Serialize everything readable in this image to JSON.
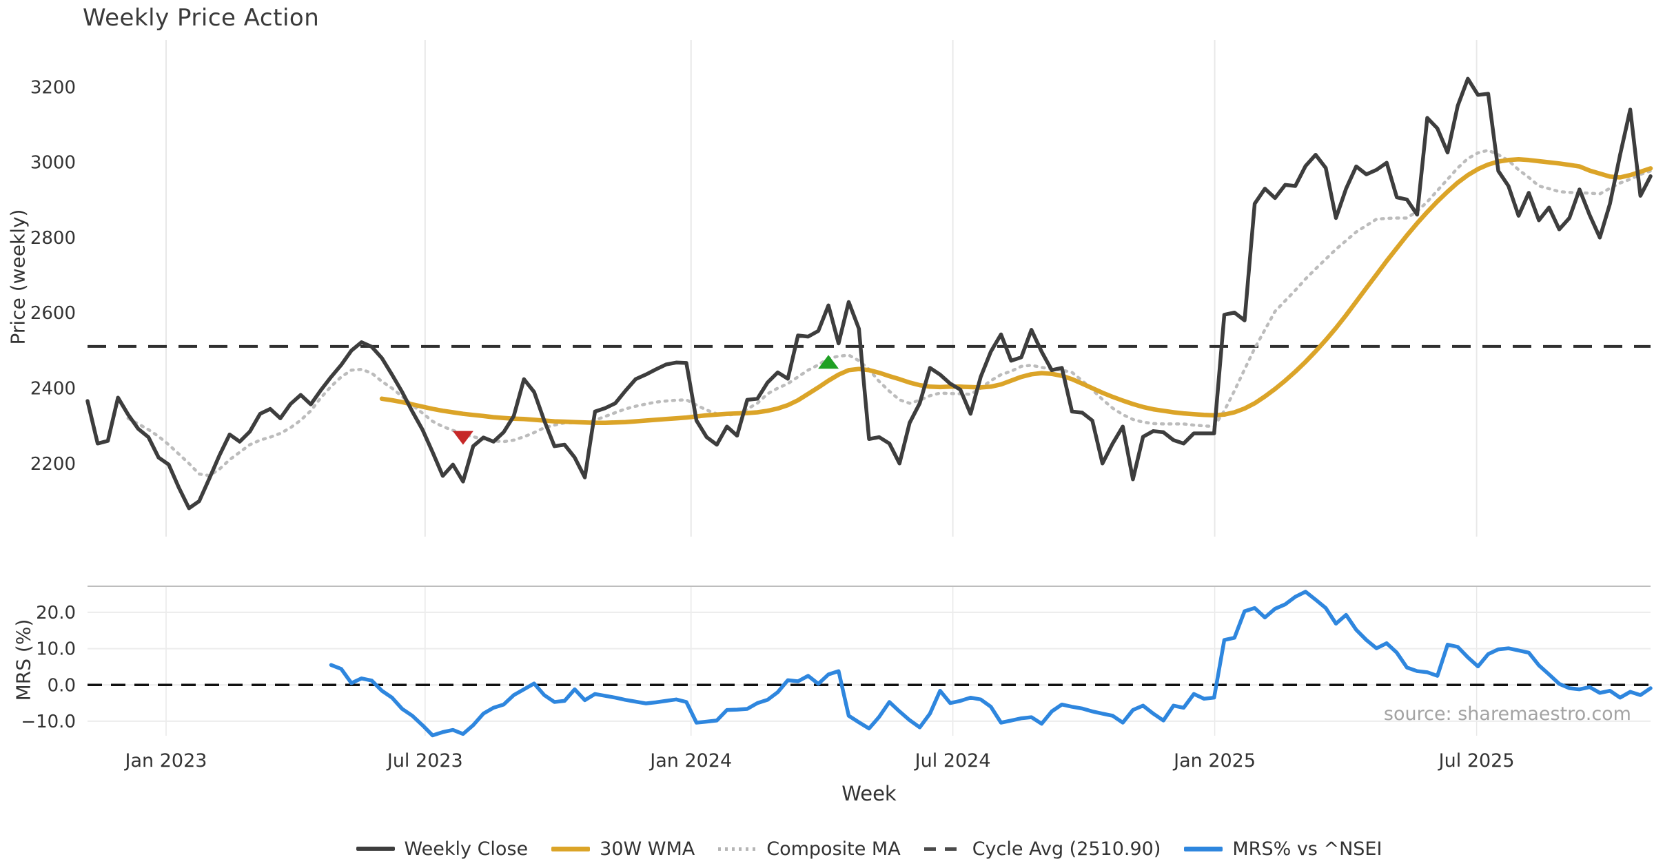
{
  "title": "Weekly Price Action",
  "source_note": "source: sharemaestro.com",
  "price_axis": {
    "label": "Price (weekly)",
    "ticks": [
      3200,
      3000,
      2800,
      2600,
      2400,
      2200
    ],
    "ylim": [
      2013,
      3325
    ]
  },
  "mrs_axis": {
    "label": "MRS (%)",
    "ticks": [
      {
        "v": 20,
        "label": "20.0"
      },
      {
        "v": 10,
        "label": "10.0"
      },
      {
        "v": 0,
        "label": "0.0"
      },
      {
        "v": -10,
        "label": "−10.0"
      }
    ],
    "ylim": [
      -14.0,
      27.2
    ]
  },
  "x_axis": {
    "label": "Week",
    "ticks": [
      {
        "label": "Jan 2023",
        "week": 7.74
      },
      {
        "label": "Jul 2023",
        "week": 33.26
      },
      {
        "label": "Jan 2024",
        "week": 59.46
      },
      {
        "label": "Jul 2024",
        "week": 85.26
      },
      {
        "label": "Jan 2025",
        "week": 111.06
      },
      {
        "label": "Jul 2025",
        "week": 136.86
      }
    ]
  },
  "legend": {
    "items": [
      {
        "key": "close",
        "label": "Weekly Close"
      },
      {
        "key": "wma",
        "label": "30W WMA"
      },
      {
        "key": "composite",
        "label": "Composite MA"
      },
      {
        "key": "cycle",
        "label": "Cycle Avg (2510.90)"
      },
      {
        "key": "mrs",
        "label": "MRS% vs ^NSEI"
      }
    ]
  },
  "colors": {
    "close": "#3d3d3d",
    "wma": "#DBA428",
    "composite": "#bcbcbc",
    "cycle": "#2f2f2f",
    "mrs": "#2E86DE",
    "sell_marker": "#C62828",
    "buy_marker": "#1FA024",
    "grid": "#e8e8e8",
    "panel_border": "#bdbdbd",
    "tick_text": "#333333",
    "source_text": "#a3a3a3"
  },
  "chart_data": {
    "type": "line",
    "x_unit": "week",
    "weeks_total": 155,
    "cycle_avg": 2510.9,
    "series": [
      {
        "name": "Weekly Close",
        "start_week": 0,
        "values": [
          2366,
          2253,
          2260,
          2375,
          2330,
          2292,
          2270,
          2216,
          2197,
          2136,
          2081,
          2100,
          2160,
          2222,
          2277,
          2258,
          2285,
          2332,
          2345,
          2320,
          2358,
          2382,
          2357,
          2395,
          2430,
          2462,
          2500,
          2522,
          2510,
          2480,
          2436,
          2390,
          2338,
          2290,
          2230,
          2167,
          2197,
          2152,
          2246,
          2269,
          2258,
          2283,
          2326,
          2424,
          2390,
          2314,
          2246,
          2250,
          2216,
          2163,
          2338,
          2347,
          2360,
          2393,
          2424,
          2436,
          2450,
          2463,
          2468,
          2467,
          2314,
          2270,
          2250,
          2298,
          2274,
          2369,
          2372,
          2415,
          2442,
          2425,
          2540,
          2537,
          2552,
          2620,
          2519,
          2629,
          2558,
          2265,
          2270,
          2253,
          2200,
          2308,
          2360,
          2454,
          2436,
          2412,
          2396,
          2332,
          2430,
          2497,
          2543,
          2473,
          2482,
          2555,
          2497,
          2448,
          2454,
          2338,
          2335,
          2314,
          2200,
          2253,
          2298,
          2158,
          2271,
          2286,
          2283,
          2262,
          2253,
          2280,
          2280,
          2280,
          2595,
          2601,
          2580,
          2890,
          2930,
          2905,
          2940,
          2937,
          2990,
          3020,
          2985,
          2852,
          2930,
          2989,
          2968,
          2980,
          2999,
          2907,
          2901,
          2861,
          3118,
          3090,
          3026,
          3150,
          3222,
          3179,
          3182,
          2977,
          2937,
          2858,
          2919,
          2846,
          2880,
          2822,
          2852,
          2928,
          2860,
          2800,
          2890,
          3020,
          3140,
          2911,
          2963
        ]
      },
      {
        "name": "30W WMA",
        "start_week": 29,
        "values": [
          2372,
          2368,
          2363,
          2357,
          2351,
          2345,
          2340,
          2336,
          2332,
          2329,
          2326,
          2323,
          2321,
          2319,
          2318,
          2316,
          2314,
          2312,
          2311,
          2310,
          2309,
          2308,
          2308,
          2309,
          2310,
          2312,
          2314,
          2316,
          2318,
          2320,
          2322,
          2325,
          2328,
          2330,
          2332,
          2333,
          2334,
          2336,
          2340,
          2346,
          2355,
          2368,
          2385,
          2402,
          2420,
          2436,
          2448,
          2451,
          2448,
          2441,
          2432,
          2424,
          2415,
          2408,
          2404,
          2403,
          2404,
          2404,
          2403,
          2402,
          2404,
          2410,
          2420,
          2430,
          2437,
          2440,
          2438,
          2433,
          2424,
          2412,
          2400,
          2388,
          2377,
          2367,
          2358,
          2350,
          2344,
          2340,
          2336,
          2333,
          2331,
          2329,
          2328,
          2330,
          2336,
          2346,
          2360,
          2378,
          2398,
          2420,
          2444,
          2470,
          2498,
          2528,
          2560,
          2594,
          2630,
          2666,
          2702,
          2738,
          2772,
          2806,
          2838,
          2868,
          2896,
          2922,
          2946,
          2966,
          2982,
          2994,
          3002,
          3006,
          3008,
          3006,
          3003,
          3000,
          2997,
          2993,
          2989,
          2978,
          2970,
          2962,
          2960,
          2966,
          2975,
          2984
        ]
      },
      {
        "name": "Composite MA",
        "start_week": 4,
        "values": [
          2320,
          2305,
          2290,
          2272,
          2250,
          2225,
          2200,
          2172,
          2168,
          2185,
          2210,
          2230,
          2250,
          2262,
          2270,
          2280,
          2295,
          2315,
          2340,
          2375,
          2405,
          2430,
          2448,
          2450,
          2440,
          2418,
          2400,
          2378,
          2355,
          2334,
          2312,
          2298,
          2288,
          2278,
          2271,
          2265,
          2260,
          2258,
          2262,
          2271,
          2282,
          2295,
          2302,
          2308,
          2308,
          2308,
          2315,
          2325,
          2335,
          2345,
          2352,
          2358,
          2363,
          2366,
          2368,
          2369,
          2355,
          2342,
          2332,
          2329,
          2331,
          2345,
          2360,
          2385,
          2400,
          2412,
          2430,
          2448,
          2462,
          2479,
          2485,
          2488,
          2473,
          2450,
          2418,
          2392,
          2369,
          2360,
          2368,
          2380,
          2387,
          2386,
          2385,
          2384,
          2400,
          2420,
          2436,
          2445,
          2458,
          2461,
          2455,
          2451,
          2448,
          2442,
          2420,
          2396,
          2370,
          2347,
          2330,
          2317,
          2310,
          2306,
          2305,
          2305,
          2305,
          2302,
          2300,
          2298,
          2340,
          2393,
          2450,
          2506,
          2555,
          2604,
          2632,
          2660,
          2690,
          2717,
          2743,
          2769,
          2792,
          2815,
          2832,
          2849,
          2851,
          2852,
          2852,
          2870,
          2895,
          2925,
          2955,
          2985,
          3010,
          3025,
          3032,
          3020,
          3005,
          2980,
          2960,
          2937,
          2930,
          2922,
          2920,
          2919,
          2918,
          2916,
          2931,
          2945,
          2955,
          2968,
          2977
        ]
      },
      {
        "name": "MRS% vs ^NSEI",
        "start_week": 24,
        "values": [
          5.5,
          4.4,
          0.5,
          1.8,
          1.2,
          -1.6,
          -3.5,
          -6.6,
          -8.5,
          -11.1,
          -13.9,
          -13.0,
          -12.4,
          -13.5,
          -11.1,
          -7.9,
          -6.3,
          -5.4,
          -2.8,
          -1.2,
          0.4,
          -2.8,
          -4.7,
          -4.4,
          -1.2,
          -4.2,
          -2.5,
          -3.0,
          -3.5,
          -4.1,
          -4.6,
          -5.1,
          -4.8,
          -4.4,
          -4.0,
          -4.7,
          -10.4,
          -10.1,
          -9.8,
          -6.9,
          -6.8,
          -6.6,
          -5.0,
          -4.1,
          -2.0,
          1.3,
          1.0,
          2.5,
          0.3,
          2.9,
          3.8,
          -8.5,
          -10.3,
          -12.0,
          -8.8,
          -4.7,
          -7.3,
          -9.7,
          -11.7,
          -7.9,
          -1.6,
          -5.0,
          -4.4,
          -3.5,
          -4.0,
          -6.0,
          -10.4,
          -9.8,
          -9.2,
          -8.9,
          -10.7,
          -7.3,
          -5.4,
          -6.0,
          -6.5,
          -7.3,
          -7.9,
          -8.5,
          -10.4,
          -6.9,
          -5.7,
          -7.9,
          -9.8,
          -5.7,
          -6.3,
          -2.5,
          -3.8,
          -3.5,
          12.4,
          13.0,
          20.3,
          21.2,
          18.6,
          21.0,
          22.2,
          24.3,
          25.7,
          23.5,
          21.2,
          16.9,
          19.3,
          15.2,
          12.4,
          10.1,
          11.5,
          8.9,
          4.8,
          3.8,
          3.5,
          2.5,
          11.1,
          10.5,
          7.6,
          5.1,
          8.5,
          9.8,
          10.1,
          9.5,
          8.9,
          5.4,
          2.9,
          0.3,
          -0.9,
          -1.2,
          -0.6,
          -2.2,
          -1.6,
          -3.5,
          -1.9,
          -2.8,
          -0.9
        ]
      }
    ],
    "markers": [
      {
        "type": "sell",
        "week": 37,
        "price": 2268
      },
      {
        "type": "buy",
        "week": 73,
        "price": 2470
      }
    ]
  }
}
